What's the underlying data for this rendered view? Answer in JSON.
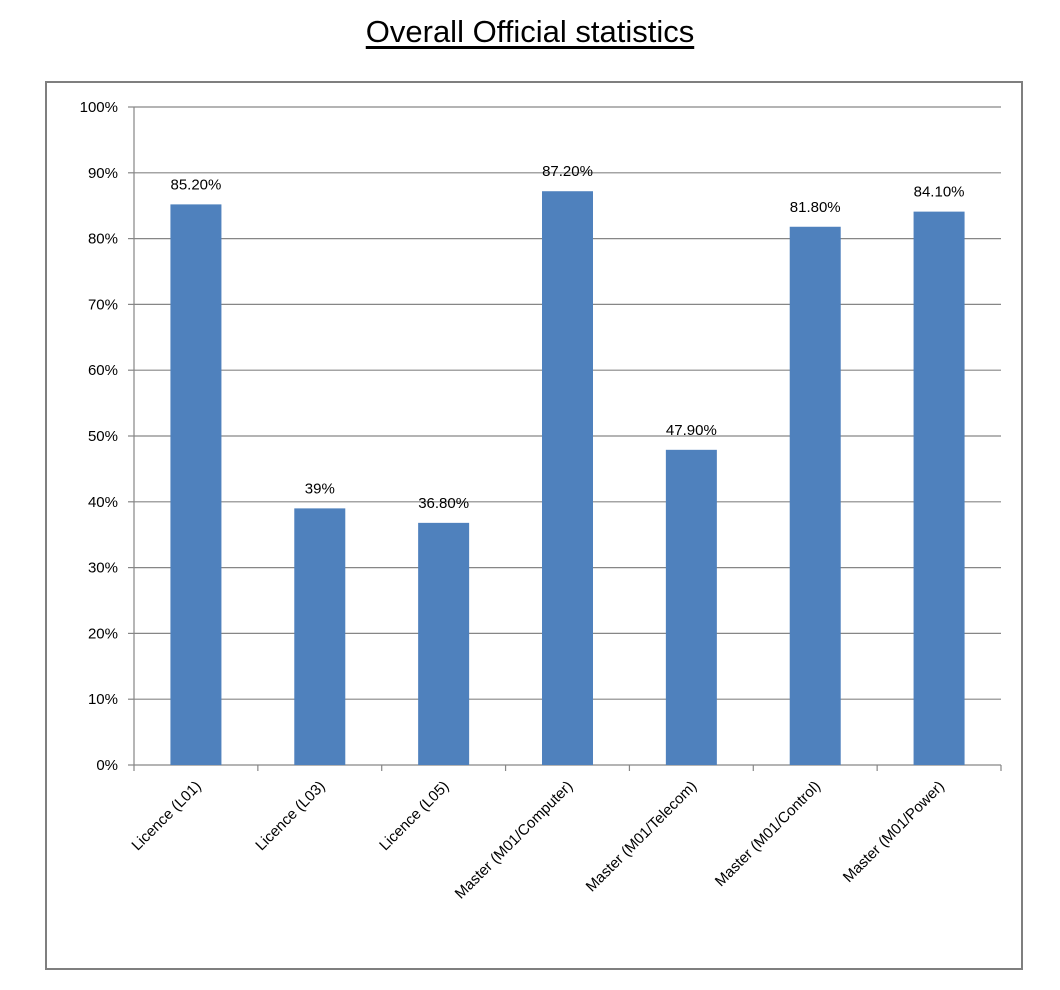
{
  "chart_data": {
    "type": "bar",
    "title": "Overall Official statistics",
    "categories": [
      "Licence (L01)",
      "Licence (L03)",
      "Licence (L05)",
      "Master (M01/Computer)",
      "Master (M01/Telecom)",
      "Master (M01/Control)",
      "Master (M01/Power)"
    ],
    "values": [
      85.2,
      39,
      36.8,
      87.2,
      47.9,
      81.8,
      84.1
    ],
    "data_labels": [
      "85.20%",
      "39%",
      "36.80%",
      "87.20%",
      "47.90%",
      "81.80%",
      "84.10%"
    ],
    "y_ticks": [
      "0%",
      "10%",
      "20%",
      "30%",
      "40%",
      "50%",
      "60%",
      "70%",
      "80%",
      "90%",
      "100%"
    ],
    "ylim": [
      0,
      100
    ],
    "grid": true,
    "legend": "none",
    "colors": {
      "bar": "#4f81bd",
      "grid": "#868686",
      "frame": "#7f7f7f"
    }
  }
}
